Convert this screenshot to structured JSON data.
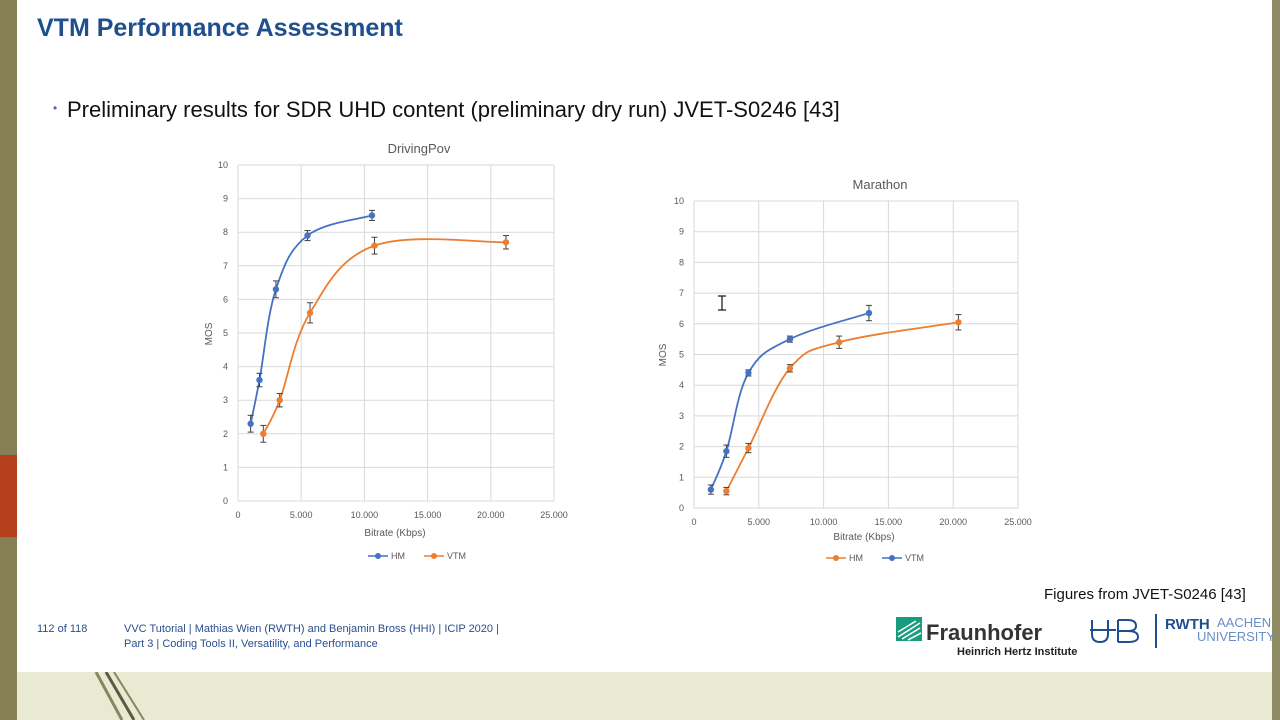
{
  "slide": {
    "title": "VTM Performance Assessment",
    "bullet": "Preliminary results for SDR UHD content (preliminary dry run) JVET-S0246 [43]",
    "caption": "Figures from JVET-S0246 [43]"
  },
  "footer": {
    "page": "112 of 118",
    "line1": "VVC Tutorial  |  Mathias Wien (RWTH) and Benjamin Bross (HHI)  |  ICIP 2020  |",
    "line2": "Part 3  |  Coding Tools II, Versatility, and Performance"
  },
  "logos": {
    "fraunhofer": "Fraunhofer",
    "fraunhofer_sub": "Heinrich Hertz Institute",
    "rwth": "RWTH",
    "rwth_aachen": "AACHEN",
    "rwth_university": "UNIVERSITY"
  },
  "colors": {
    "title": "#1f4f8f",
    "hm": "#ed7d31",
    "vtm": "#4472c4",
    "accent": "#b5401c"
  },
  "chart_data": [
    {
      "type": "line",
      "title": "DrivingPov",
      "xlabel": "Bitrate (Kbps)",
      "ylabel": "MOS",
      "xlim": [
        0,
        25000
      ],
      "ylim": [
        0,
        10
      ],
      "xticks": [
        "0",
        "5.000",
        "10.000",
        "15.000",
        "20.000",
        "25.000"
      ],
      "yticks": [
        "0",
        "1",
        "2",
        "3",
        "4",
        "5",
        "6",
        "7",
        "8",
        "9",
        "10"
      ],
      "grid": true,
      "legend": "bottom",
      "series": [
        {
          "name": "HM",
          "color": "#ed7d31",
          "x": [
            2000,
            3300,
            5700,
            10800,
            21200
          ],
          "y": [
            2.0,
            3.0,
            5.6,
            7.6,
            7.7
          ],
          "err": [
            0.25,
            0.2,
            0.3,
            0.25,
            0.2
          ]
        },
        {
          "name": "VTM",
          "color": "#4472c4",
          "x": [
            1000,
            1700,
            3000,
            5500,
            10600
          ],
          "y": [
            2.3,
            3.6,
            6.3,
            7.9,
            8.5
          ],
          "err": [
            0.25,
            0.2,
            0.25,
            0.15,
            0.15
          ]
        }
      ]
    },
    {
      "type": "line",
      "title": "Marathon",
      "xlabel": "Bitrate (Kbps)",
      "ylabel": "MOS",
      "xlim": [
        0,
        25000
      ],
      "ylim": [
        0,
        10
      ],
      "xticks": [
        "0",
        "5.000",
        "10.000",
        "15.000",
        "20.000",
        "25.000"
      ],
      "yticks": [
        "0",
        "1",
        "2",
        "3",
        "4",
        "5",
        "6",
        "7",
        "8",
        "9",
        "10"
      ],
      "grid": true,
      "legend": "bottom",
      "series": [
        {
          "name": "HM",
          "color": "#ed7d31",
          "x": [
            2500,
            4200,
            7400,
            11200,
            20400
          ],
          "y": [
            0.55,
            1.95,
            4.55,
            5.4,
            6.05
          ],
          "err": [
            0.12,
            0.15,
            0.12,
            0.2,
            0.25
          ]
        },
        {
          "name": "VTM",
          "color": "#4472c4",
          "x": [
            1300,
            2500,
            4200,
            7400,
            13500
          ],
          "y": [
            0.6,
            1.85,
            4.4,
            5.5,
            6.35
          ],
          "err": [
            0.15,
            0.2,
            0.1,
            0.1,
            0.25
          ]
        }
      ]
    }
  ]
}
